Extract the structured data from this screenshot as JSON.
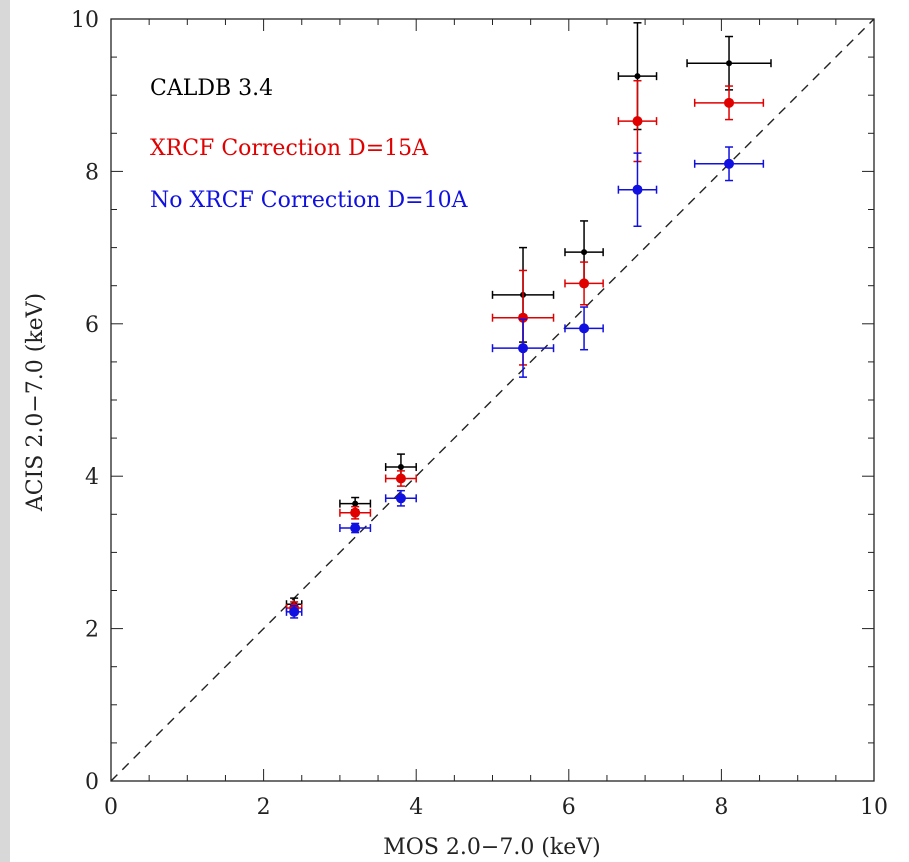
{
  "chart_data": {
    "type": "scatter",
    "xlabel": "MOS 2.0−7.0 (keV)",
    "ylabel": "ACIS 2.0−7.0 (keV)",
    "xlim": [
      0,
      10
    ],
    "ylim": [
      0,
      10
    ],
    "x_ticks": [
      "0",
      "2",
      "4",
      "6",
      "8",
      "10"
    ],
    "y_ticks": [
      "0",
      "2",
      "4",
      "6",
      "8",
      "10"
    ],
    "reference_line": "y = x (dashed)",
    "grid": false,
    "legend_placement": "top-left",
    "series": [
      {
        "name": "CALDB 3.4",
        "color": "#000000",
        "points": [
          {
            "x": 2.4,
            "y": 2.32,
            "xerr": 0.1,
            "yerr": 0.08
          },
          {
            "x": 3.2,
            "y": 3.64,
            "xerr": 0.2,
            "yerr": 0.08
          },
          {
            "x": 3.8,
            "y": 4.12,
            "xerr": 0.2,
            "yerr": 0.17
          },
          {
            "x": 5.4,
            "y": 6.38,
            "xerr": 0.4,
            "yerr": 0.62
          },
          {
            "x": 6.2,
            "y": 6.94,
            "xerr": 0.25,
            "yerr": 0.41
          },
          {
            "x": 6.9,
            "y": 9.25,
            "xerr": 0.25,
            "yerr": 0.7
          },
          {
            "x": 8.1,
            "y": 9.42,
            "xerr": 0.55,
            "yerr": 0.35
          }
        ]
      },
      {
        "name": "XRCF Correction D=15A",
        "color": "#e00000",
        "points": [
          {
            "x": 2.4,
            "y": 2.27,
            "xerr": 0.1,
            "yerr": 0.08
          },
          {
            "x": 3.2,
            "y": 3.52,
            "xerr": 0.2,
            "yerr": 0.08
          },
          {
            "x": 3.8,
            "y": 3.97,
            "xerr": 0.2,
            "yerr": 0.1
          },
          {
            "x": 5.4,
            "y": 6.08,
            "xerr": 0.4,
            "yerr": 0.62
          },
          {
            "x": 6.2,
            "y": 6.53,
            "xerr": 0.25,
            "yerr": 0.28
          },
          {
            "x": 6.9,
            "y": 8.66,
            "xerr": 0.25,
            "yerr": 0.53
          },
          {
            "x": 8.1,
            "y": 8.9,
            "xerr": 0.45,
            "yerr": 0.22
          }
        ]
      },
      {
        "name": "No XRCF Correction D=10A",
        "color": "#1010e0",
        "points": [
          {
            "x": 2.4,
            "y": 2.22,
            "xerr": 0.1,
            "yerr": 0.08
          },
          {
            "x": 3.2,
            "y": 3.32,
            "xerr": 0.2,
            "yerr": 0.06
          },
          {
            "x": 3.8,
            "y": 3.71,
            "xerr": 0.2,
            "yerr": 0.1
          },
          {
            "x": 5.4,
            "y": 5.68,
            "xerr": 0.4,
            "yerr": 0.38
          },
          {
            "x": 6.2,
            "y": 5.94,
            "xerr": 0.25,
            "yerr": 0.28
          },
          {
            "x": 6.9,
            "y": 7.76,
            "xerr": 0.25,
            "yerr": 0.48
          },
          {
            "x": 8.1,
            "y": 8.1,
            "xerr": 0.45,
            "yerr": 0.22
          }
        ]
      }
    ]
  }
}
